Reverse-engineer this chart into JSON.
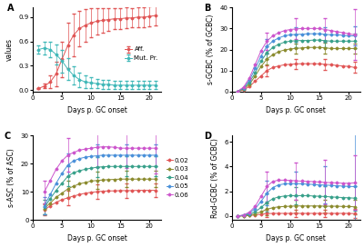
{
  "panel_A": {
    "title": "A",
    "xlabel": "Days p. GC onset",
    "ylabel": "values",
    "xlim": [
      0,
      22
    ],
    "ylim": [
      -0.02,
      1.02
    ],
    "yticks": [
      0.0,
      0.3,
      0.6,
      0.9
    ],
    "days": [
      1,
      2,
      3,
      4,
      5,
      6,
      7,
      8,
      9,
      10,
      11,
      12,
      13,
      14,
      15,
      16,
      17,
      18,
      19,
      20,
      21
    ],
    "aff_mean": [
      0.02,
      0.05,
      0.1,
      0.2,
      0.38,
      0.55,
      0.68,
      0.76,
      0.8,
      0.83,
      0.85,
      0.86,
      0.87,
      0.88,
      0.88,
      0.89,
      0.89,
      0.9,
      0.9,
      0.91,
      0.92
    ],
    "aff_err": [
      0.01,
      0.03,
      0.08,
      0.15,
      0.22,
      0.28,
      0.26,
      0.22,
      0.2,
      0.18,
      0.16,
      0.15,
      0.14,
      0.13,
      0.13,
      0.13,
      0.12,
      0.12,
      0.12,
      0.12,
      0.12
    ],
    "mut_mean": [
      0.5,
      0.52,
      0.5,
      0.44,
      0.36,
      0.26,
      0.18,
      0.13,
      0.1,
      0.09,
      0.08,
      0.07,
      0.07,
      0.06,
      0.06,
      0.06,
      0.06,
      0.06,
      0.06,
      0.06,
      0.06
    ],
    "mut_err": [
      0.05,
      0.08,
      0.1,
      0.12,
      0.14,
      0.13,
      0.11,
      0.09,
      0.08,
      0.07,
      0.06,
      0.06,
      0.06,
      0.05,
      0.05,
      0.05,
      0.05,
      0.05,
      0.05,
      0.05,
      0.05
    ],
    "aff_color": "#e05555",
    "mut_color": "#40b8b8",
    "legend_labels": [
      "Aff.",
      "Mut. Pr."
    ]
  },
  "panel_B": {
    "title": "B",
    "xlabel": "Days p. GC onset",
    "ylabel": "s-GCBC (% of GCBC)",
    "xlim": [
      0,
      22
    ],
    "ylim": [
      0,
      40
    ],
    "yticks": [
      0,
      10,
      20,
      30,
      40
    ],
    "days": [
      1,
      2,
      3,
      4,
      5,
      6,
      7,
      8,
      9,
      10,
      11,
      12,
      13,
      14,
      15,
      16,
      17,
      18,
      19,
      20,
      21
    ],
    "err_days": [
      6,
      11,
      16,
      21
    ],
    "series": {
      "0.02": {
        "mean": [
          0.1,
          0.8,
          2.5,
          5.0,
          7.5,
          10.0,
          11.5,
          12.2,
          12.8,
          13.0,
          13.2,
          13.3,
          13.3,
          13.3,
          13.2,
          13.0,
          12.8,
          12.5,
          12.2,
          12.0,
          11.5
        ],
        "err": [
          0.0,
          0.0,
          0.0,
          0.0,
          0.0,
          2.5,
          0.0,
          0.0,
          0.0,
          0.0,
          2.5,
          0.0,
          0.0,
          0.0,
          0.0,
          2.5,
          0.0,
          0.0,
          0.0,
          0.0,
          2.5
        ],
        "color": "#e05555"
      },
      "0.03": {
        "mean": [
          0.1,
          1.2,
          3.5,
          7.5,
          12.0,
          15.5,
          17.5,
          19.0,
          19.8,
          20.3,
          20.5,
          20.8,
          21.0,
          21.0,
          21.0,
          20.8,
          20.5,
          20.5,
          20.5,
          20.5,
          20.5
        ],
        "err": [
          0.0,
          0.0,
          0.0,
          0.0,
          0.0,
          2.5,
          0.0,
          0.0,
          0.0,
          0.0,
          2.5,
          0.0,
          0.0,
          0.0,
          0.0,
          2.5,
          0.0,
          0.0,
          0.0,
          0.0,
          2.5
        ],
        "color": "#8b8b2e"
      },
      "0.04": {
        "mean": [
          0.2,
          1.5,
          4.5,
          9.0,
          14.5,
          18.5,
          21.0,
          22.5,
          23.5,
          24.0,
          24.2,
          24.3,
          24.3,
          24.5,
          24.5,
          24.2,
          24.0,
          24.0,
          24.0,
          24.0,
          24.0
        ],
        "err": [
          0.0,
          0.0,
          0.0,
          0.0,
          0.0,
          3.0,
          0.0,
          0.0,
          0.0,
          0.0,
          3.0,
          0.0,
          0.0,
          0.0,
          0.0,
          3.0,
          0.0,
          0.0,
          0.0,
          0.0,
          3.5
        ],
        "color": "#38a08a"
      },
      "0.05": {
        "mean": [
          0.2,
          1.8,
          5.5,
          11.0,
          17.0,
          21.5,
          24.0,
          25.5,
          26.5,
          27.0,
          27.2,
          27.3,
          27.5,
          27.5,
          27.5,
          27.2,
          27.0,
          27.0,
          26.8,
          26.5,
          26.5
        ],
        "err": [
          0.0,
          0.0,
          0.0,
          0.0,
          0.0,
          3.5,
          0.0,
          0.0,
          0.0,
          0.0,
          3.5,
          0.0,
          0.0,
          0.0,
          0.0,
          3.5,
          0.0,
          0.0,
          0.0,
          0.0,
          4.5
        ],
        "color": "#4a90d9"
      },
      "0.06": {
        "mean": [
          0.2,
          2.2,
          6.5,
          13.0,
          19.5,
          24.0,
          26.5,
          28.0,
          29.0,
          29.5,
          29.8,
          30.0,
          30.0,
          30.0,
          30.0,
          29.5,
          29.0,
          28.5,
          28.0,
          27.5,
          27.0
        ],
        "err": [
          0.0,
          0.0,
          0.0,
          0.0,
          0.0,
          4.0,
          0.0,
          0.0,
          0.0,
          0.0,
          5.0,
          0.0,
          0.0,
          0.0,
          0.0,
          5.5,
          0.0,
          0.0,
          0.0,
          0.0,
          12.0
        ],
        "color": "#cc55cc"
      }
    }
  },
  "panel_C": {
    "title": "C",
    "xlabel": "Days p. GC onset",
    "ylabel": "s-ASC (% of ASC)",
    "xlim": [
      0,
      22
    ],
    "ylim": [
      0,
      30
    ],
    "yticks": [
      0,
      10,
      20,
      30
    ],
    "days": [
      2,
      3,
      4,
      5,
      6,
      7,
      8,
      9,
      10,
      11,
      12,
      13,
      14,
      15,
      16,
      17,
      18,
      19,
      20,
      21
    ],
    "series": {
      "0.02": {
        "mean": [
          3.5,
          5.0,
          6.2,
          7.2,
          7.8,
          8.5,
          9.0,
          9.5,
          9.8,
          10.0,
          10.2,
          10.3,
          10.3,
          10.4,
          10.4,
          10.4,
          10.5,
          10.5,
          10.5,
          10.5
        ],
        "err": [
          2.0,
          0.0,
          0.0,
          0.0,
          2.5,
          0.0,
          0.0,
          0.0,
          0.0,
          2.5,
          0.0,
          0.0,
          0.0,
          0.0,
          2.5,
          0.0,
          0.0,
          0.0,
          0.0,
          2.5
        ],
        "color": "#e05555"
      },
      "0.03": {
        "mean": [
          4.0,
          6.0,
          8.0,
          9.5,
          11.0,
          12.0,
          12.8,
          13.3,
          13.8,
          14.0,
          14.2,
          14.3,
          14.4,
          14.5,
          14.5,
          14.5,
          14.5,
          14.5,
          14.5,
          14.5
        ],
        "err": [
          2.0,
          0.0,
          0.0,
          0.0,
          3.0,
          0.0,
          0.0,
          0.0,
          0.0,
          3.0,
          0.0,
          0.0,
          0.0,
          0.0,
          3.0,
          0.0,
          0.0,
          0.0,
          0.0,
          3.0
        ],
        "color": "#8b8b2e"
      },
      "0.04": {
        "mean": [
          4.5,
          7.5,
          10.5,
          13.0,
          15.5,
          16.8,
          17.5,
          18.0,
          18.4,
          18.7,
          18.9,
          19.0,
          19.0,
          19.0,
          19.0,
          19.0,
          19.0,
          19.0,
          19.0,
          19.0
        ],
        "err": [
          2.5,
          0.0,
          0.0,
          0.0,
          3.5,
          0.0,
          0.0,
          0.0,
          0.0,
          3.5,
          0.0,
          0.0,
          0.0,
          0.0,
          3.5,
          0.0,
          0.0,
          0.0,
          0.0,
          3.5
        ],
        "color": "#38a08a"
      },
      "0.05": {
        "mean": [
          5.0,
          9.0,
          13.0,
          16.5,
          19.5,
          21.0,
          21.8,
          22.3,
          22.6,
          22.8,
          23.0,
          23.0,
          23.0,
          23.0,
          23.0,
          23.0,
          23.0,
          23.0,
          23.0,
          23.0
        ],
        "err": [
          3.0,
          0.0,
          0.0,
          0.0,
          4.0,
          0.0,
          0.0,
          0.0,
          0.0,
          4.0,
          0.0,
          0.0,
          0.0,
          0.0,
          4.0,
          0.0,
          0.0,
          0.0,
          0.0,
          4.0
        ],
        "color": "#4a90d9"
      },
      "0.06": {
        "mean": [
          10.0,
          14.0,
          18.0,
          21.0,
          23.0,
          24.0,
          24.8,
          25.2,
          25.5,
          25.8,
          26.0,
          26.0,
          25.8,
          25.5,
          25.5,
          25.5,
          25.5,
          25.5,
          25.5,
          25.5
        ],
        "err": [
          4.0,
          0.0,
          0.0,
          0.0,
          6.0,
          0.0,
          0.0,
          0.0,
          0.0,
          7.0,
          0.0,
          0.0,
          0.0,
          0.0,
          7.0,
          0.0,
          0.0,
          0.0,
          0.0,
          9.0
        ],
        "color": "#cc55cc"
      }
    }
  },
  "panel_D": {
    "title": "D",
    "xlabel": "Days p. GC onset",
    "ylabel": "Rod-GCBC (% of GCBC)",
    "xlim": [
      0,
      22
    ],
    "ylim": [
      -0.3,
      6.5
    ],
    "yticks": [
      0,
      2,
      4,
      6
    ],
    "days": [
      1,
      2,
      3,
      4,
      5,
      6,
      7,
      8,
      9,
      10,
      11,
      12,
      13,
      14,
      15,
      16,
      17,
      18,
      19,
      20,
      21
    ],
    "series": {
      "0.02": {
        "mean": [
          0.0,
          0.02,
          0.05,
          0.1,
          0.15,
          0.2,
          0.22,
          0.22,
          0.22,
          0.22,
          0.22,
          0.22,
          0.22,
          0.22,
          0.22,
          0.22,
          0.22,
          0.22,
          0.22,
          0.22,
          0.2
        ],
        "err": [
          0.0,
          0.0,
          0.0,
          0.0,
          0.0,
          0.3,
          0.0,
          0.0,
          0.0,
          0.0,
          0.3,
          0.0,
          0.0,
          0.0,
          0.0,
          0.3,
          0.0,
          0.0,
          0.0,
          0.0,
          0.35
        ],
        "color": "#e05555"
      },
      "0.03": {
        "mean": [
          0.0,
          0.03,
          0.08,
          0.18,
          0.35,
          0.55,
          0.68,
          0.75,
          0.78,
          0.8,
          0.82,
          0.82,
          0.82,
          0.82,
          0.82,
          0.8,
          0.8,
          0.8,
          0.78,
          0.78,
          0.75
        ],
        "err": [
          0.0,
          0.0,
          0.0,
          0.0,
          0.0,
          0.5,
          0.0,
          0.0,
          0.0,
          0.0,
          0.5,
          0.0,
          0.0,
          0.0,
          0.0,
          0.5,
          0.0,
          0.0,
          0.0,
          0.0,
          0.6
        ],
        "color": "#8b8b2e"
      },
      "0.04": {
        "mean": [
          0.0,
          0.05,
          0.15,
          0.35,
          0.7,
          1.1,
          1.4,
          1.55,
          1.62,
          1.65,
          1.65,
          1.65,
          1.65,
          1.62,
          1.6,
          1.58,
          1.55,
          1.52,
          1.5,
          1.48,
          1.45
        ],
        "err": [
          0.0,
          0.0,
          0.0,
          0.0,
          0.0,
          0.7,
          0.0,
          0.0,
          0.0,
          0.0,
          0.7,
          0.0,
          0.0,
          0.0,
          0.0,
          0.8,
          0.0,
          0.0,
          0.0,
          0.0,
          1.0
        ],
        "color": "#38a08a"
      },
      "0.05": {
        "mean": [
          0.0,
          0.08,
          0.25,
          0.6,
          1.2,
          1.85,
          2.3,
          2.52,
          2.6,
          2.62,
          2.62,
          2.6,
          2.58,
          2.55,
          2.52,
          2.5,
          2.48,
          2.45,
          2.42,
          2.4,
          2.38
        ],
        "err": [
          0.0,
          0.0,
          0.0,
          0.0,
          0.0,
          1.0,
          0.0,
          0.0,
          0.0,
          0.0,
          1.0,
          0.0,
          0.0,
          0.0,
          0.0,
          1.5,
          0.0,
          0.0,
          0.0,
          0.0,
          5.5
        ],
        "color": "#4a90d9"
      },
      "0.06": {
        "mean": [
          0.0,
          0.1,
          0.32,
          0.8,
          1.6,
          2.4,
          2.8,
          2.9,
          2.9,
          2.88,
          2.85,
          2.82,
          2.8,
          2.78,
          2.75,
          2.72,
          2.7,
          2.68,
          2.65,
          2.65,
          2.68
        ],
        "err": [
          0.0,
          0.0,
          0.0,
          0.0,
          0.0,
          1.2,
          0.0,
          0.0,
          0.0,
          0.0,
          1.5,
          0.0,
          0.0,
          0.0,
          0.0,
          1.8,
          0.0,
          0.0,
          0.0,
          0.0,
          2.2
        ],
        "color": "#cc55cc"
      }
    }
  },
  "bg_color": "#ffffff",
  "panel_label_fontsize": 7,
  "axis_label_fontsize": 5.5,
  "tick_fontsize": 5,
  "legend_fontsize": 5,
  "line_width": 0.7,
  "marker_size": 1.5,
  "capsize": 1.2,
  "err_linewidth": 0.5
}
